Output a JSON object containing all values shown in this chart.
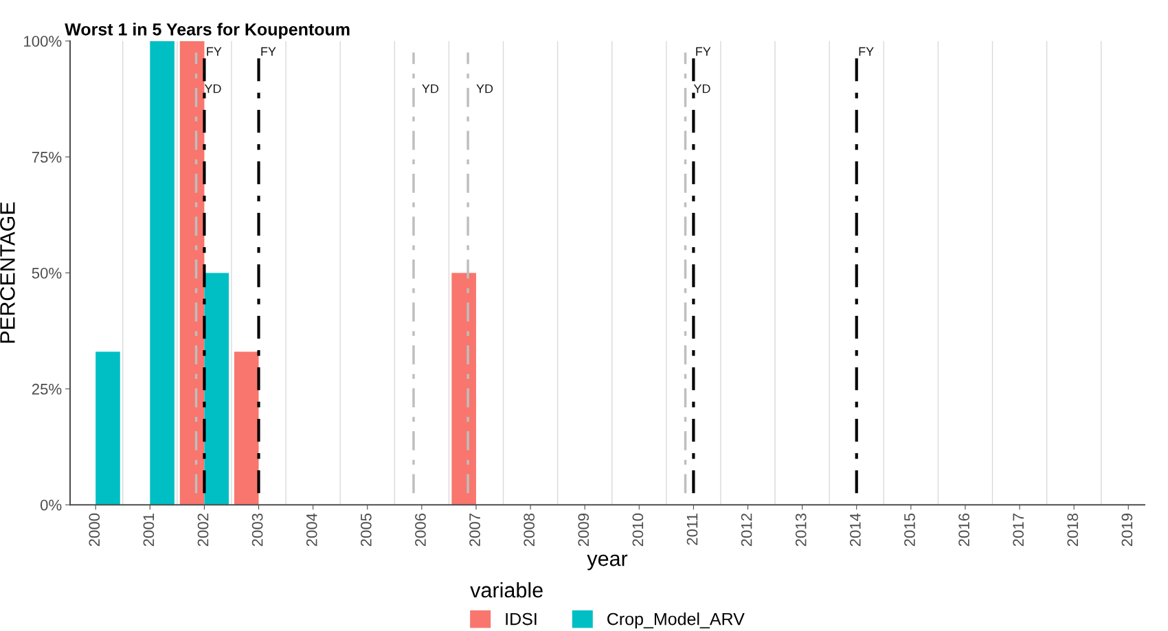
{
  "chart_data": {
    "type": "bar",
    "title": "Worst 1 in 5 Years for Koupentoum",
    "xlabel": "year",
    "ylabel": "PERCENTAGE",
    "legend_title": "variable",
    "x": [
      2000,
      2001,
      2002,
      2003,
      2004,
      2005,
      2006,
      2007,
      2008,
      2009,
      2010,
      2011,
      2012,
      2013,
      2014,
      2015,
      2016,
      2017,
      2018,
      2019
    ],
    "series": [
      {
        "name": "IDSI",
        "color": "#f8766d",
        "values": [
          0,
          0,
          100,
          33,
          0,
          0,
          0,
          50,
          0,
          0,
          0,
          0,
          0,
          0,
          0,
          0,
          0,
          0,
          0,
          0
        ]
      },
      {
        "name": "Crop_Model_ARV",
        "color": "#00bfc4",
        "values": [
          33,
          100,
          50,
          0,
          0,
          0,
          0,
          0,
          0,
          0,
          0,
          0,
          0,
          0,
          0,
          0,
          0,
          0,
          0,
          0
        ]
      }
    ],
    "xlim": [
      1999.53,
      2019.3
    ],
    "xticks": [
      2000,
      2001,
      2002,
      2003,
      2004,
      2005,
      2006,
      2007,
      2008,
      2009,
      2010,
      2011,
      2012,
      2013,
      2014,
      2015,
      2016,
      2017,
      2018,
      2019
    ],
    "ylim": [
      0,
      100
    ],
    "yticks": [
      {
        "value": 0,
        "label": "0%"
      },
      {
        "value": 25,
        "label": "25%"
      },
      {
        "value": 50,
        "label": "50%"
      },
      {
        "value": 75,
        "label": "75%"
      },
      {
        "value": 100,
        "label": "100%"
      }
    ],
    "ref_lines": [
      {
        "axis": "x",
        "value": 2002,
        "label": "FY",
        "color": "#000000",
        "line_style": "dashdot"
      },
      {
        "axis": "x",
        "value": 2003,
        "label": "FY",
        "color": "#000000",
        "line_style": "dashdot"
      },
      {
        "axis": "x",
        "value": 2011,
        "label": "FY",
        "color": "#000000",
        "line_style": "dashdot"
      },
      {
        "axis": "x",
        "value": 2014,
        "label": "FY",
        "color": "#000000",
        "line_style": "dashdot"
      },
      {
        "axis": "x",
        "value": 2001.85,
        "label": "YD",
        "color": "#bebebe",
        "line_style": "dashdot"
      },
      {
        "axis": "x",
        "value": 2005.85,
        "label": "YD",
        "color": "#bebebe",
        "line_style": "dashdot"
      },
      {
        "axis": "x",
        "value": 2006.85,
        "label": "YD",
        "color": "#bebebe",
        "line_style": "dashdot"
      },
      {
        "axis": "x",
        "value": 2010.85,
        "label": "YD",
        "color": "#bebebe",
        "line_style": "dashdot"
      }
    ],
    "grid": "x",
    "legend": "bottom"
  }
}
